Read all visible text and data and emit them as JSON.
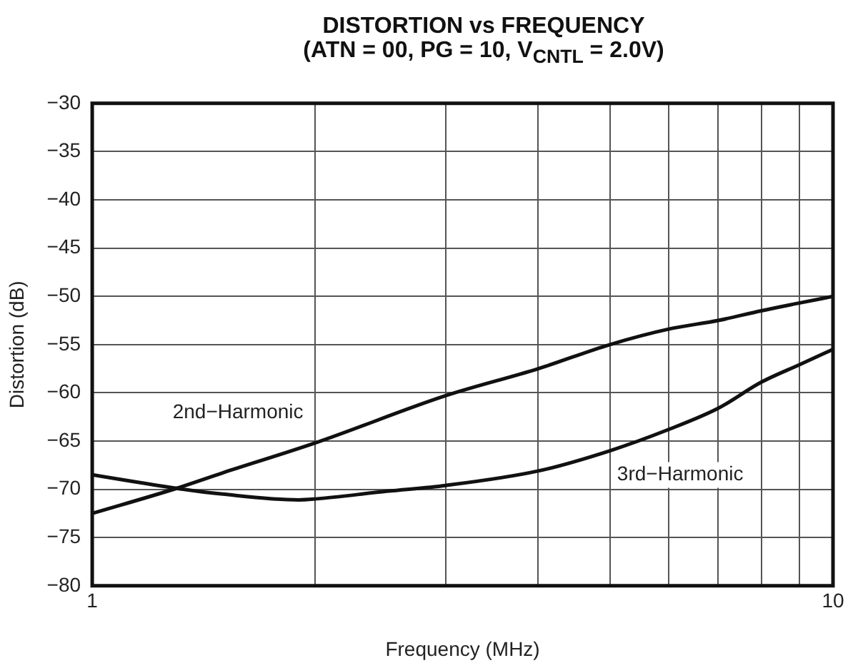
{
  "chart_data": {
    "type": "line",
    "title": "DISTORTION vs FREQUENCY",
    "subtitle": "(ATN = 00, PG = 10, V$_{CNTL}$ = 2.0V)",
    "xlabel": "Frequency (MHz)",
    "ylabel": "Distortion (dB)",
    "log": "x",
    "xlim": [
      1,
      10
    ],
    "xticks": [
      1,
      {
        "value": 2,
        "label": null
      },
      {
        "value": 3,
        "label": null
      },
      {
        "value": 4,
        "label": null
      },
      {
        "value": 5,
        "label": null
      },
      {
        "value": 6,
        "label": null
      },
      {
        "value": 7,
        "label": null
      },
      {
        "value": 8,
        "label": null
      },
      {
        "value": 9,
        "label": null
      },
      10
    ],
    "ylim": [
      -80,
      -30
    ],
    "yticks": [
      -80,
      -75,
      -70,
      -65,
      -60,
      -55,
      -50,
      -45,
      -40,
      -35,
      -30
    ],
    "grid": true,
    "legend": false,
    "marker": "none",
    "line_style": "solid",
    "series": [
      {
        "name": "2nd−Harmonic",
        "color": "#111111",
        "x": [
          1,
          1.3,
          1.5,
          2,
          3,
          4,
          5,
          6,
          7,
          8,
          9,
          10
        ],
        "values": [
          -72.5,
          -69.9,
          -68.3,
          -65.2,
          -60.3,
          -57.5,
          -55,
          -53.4,
          -52.5,
          -51.5,
          -50.7,
          -50
        ]
      },
      {
        "name": "3rd−Harmonic",
        "color": "#111111",
        "x": [
          1,
          1.3,
          1.5,
          1.9,
          2,
          2.5,
          3,
          4,
          5,
          6,
          7,
          8,
          9,
          10
        ],
        "values": [
          -68.5,
          -69.9,
          -70.5,
          -71.1,
          -71,
          -70.2,
          -69.6,
          -68.1,
          -66,
          -63.8,
          -61.6,
          -58.9,
          -57.1,
          -55.5
        ]
      }
    ]
  }
}
